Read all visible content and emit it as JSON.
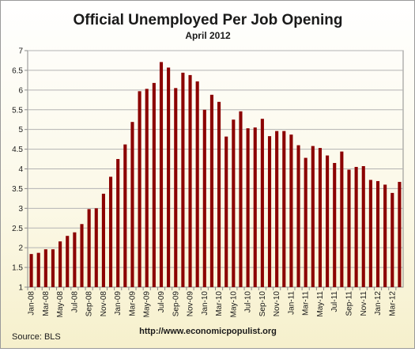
{
  "chart_data": {
    "type": "bar",
    "title": "Official Unemployed Per Job Opening",
    "subtitle": "April 2012",
    "source": "Source:  BLS",
    "url": "http://www.economicpopulist.org",
    "ylim": [
      1,
      7
    ],
    "yticks": [
      "1",
      "1.5",
      "2",
      "2.5",
      "3",
      "3.5",
      "4",
      "4.5",
      "5",
      "5.5",
      "6",
      "6.5",
      "7"
    ],
    "grid": true,
    "legend": "none",
    "bar_color": "#8b0000",
    "tick_label_every": 2,
    "categories": [
      "Jan-08",
      "Feb-08",
      "Mar-08",
      "Apr-08",
      "May-08",
      "Jun-08",
      "Jul-08",
      "Aug-08",
      "Sep-08",
      "Oct-08",
      "Nov-08",
      "Dec-08",
      "Jan-09",
      "Feb-09",
      "Mar-09",
      "Apr-09",
      "May-09",
      "Jun-09",
      "Jul-09",
      "Aug-09",
      "Sep-09",
      "Oct-09",
      "Nov-09",
      "Dec-09",
      "Jan-10",
      "Feb-10",
      "Mar-10",
      "Apr-10",
      "May-10",
      "Jun-10",
      "Jul-10",
      "Aug-10",
      "Sep-10",
      "Oct-10",
      "Nov-10",
      "Dec-10",
      "Jan-11",
      "Feb-11",
      "Mar-11",
      "Apr-11",
      "May-11",
      "Jun-11",
      "Jul-11",
      "Aug-11",
      "Sep-11",
      "Oct-11",
      "Nov-11",
      "Dec-11",
      "Jan-12",
      "Feb-12",
      "Mar-12",
      "Apr-12"
    ],
    "values": [
      1.84,
      1.87,
      1.96,
      1.96,
      2.16,
      2.3,
      2.39,
      2.6,
      2.98,
      3.0,
      3.37,
      3.8,
      4.25,
      4.62,
      5.19,
      5.97,
      6.03,
      6.18,
      6.71,
      6.57,
      6.05,
      6.44,
      6.38,
      6.22,
      5.5,
      5.88,
      5.7,
      4.82,
      5.25,
      5.46,
      5.03,
      5.05,
      5.27,
      4.83,
      4.96,
      4.96,
      4.87,
      4.6,
      4.28,
      4.58,
      4.53,
      4.34,
      4.15,
      4.44,
      3.98,
      4.05,
      4.07,
      3.72,
      3.69,
      3.6,
      3.39,
      3.67
    ]
  }
}
